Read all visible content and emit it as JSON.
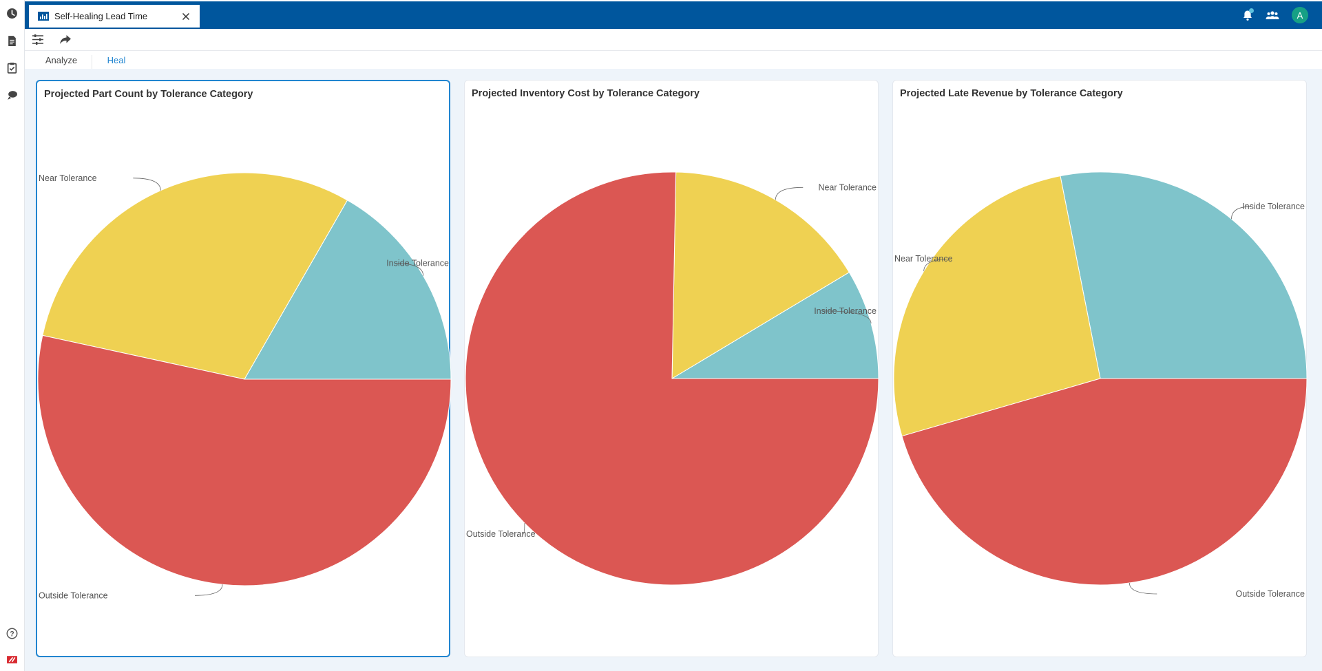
{
  "window": {
    "tab_title": "Self-Healing Lead Time"
  },
  "header": {
    "avatar_initial": "A"
  },
  "view_tabs": [
    {
      "label": "Analyze",
      "active": false
    },
    {
      "label": "Heal",
      "active": true
    }
  ],
  "colors": {
    "brand": "#00569d",
    "accent": "#2185d0",
    "inside": "#7fc4cb",
    "near": "#efd152",
    "outside": "#db5753"
  },
  "panels": [
    {
      "title": "Projected Part Count by Tolerance Category",
      "selected": true,
      "chart_data": {
        "type": "pie",
        "title": "Projected Part Count by Tolerance Category",
        "slices": [
          {
            "label": "Inside Tolerance",
            "value": 16.7,
            "color": "#7fc4cb"
          },
          {
            "label": "Near Tolerance",
            "value": 29.9,
            "color": "#efd152"
          },
          {
            "label": "Outside Tolerance",
            "value": 53.4,
            "color": "#db5753"
          }
        ]
      }
    },
    {
      "title": "Projected Inventory Cost by Tolerance Category",
      "selected": false,
      "chart_data": {
        "type": "pie",
        "title": "Projected Inventory Cost by Tolerance Category",
        "slices": [
          {
            "label": "Inside Tolerance",
            "value": 8.6,
            "color": "#7fc4cb"
          },
          {
            "label": "Near Tolerance",
            "value": 16.1,
            "color": "#efd152"
          },
          {
            "label": "Outside Tolerance",
            "value": 75.3,
            "color": "#db5753"
          }
        ]
      }
    },
    {
      "title": "Projected Late Revenue by Tolerance Category",
      "selected": false,
      "chart_data": {
        "type": "pie",
        "title": "Projected Late Revenue by Tolerance Category",
        "slices": [
          {
            "label": "Inside Tolerance",
            "value": 28.1,
            "color": "#7fc4cb"
          },
          {
            "label": "Near Tolerance",
            "value": 26.4,
            "color": "#efd152"
          },
          {
            "label": "Outside Tolerance",
            "value": 45.5,
            "color": "#db5753"
          }
        ]
      }
    }
  ]
}
